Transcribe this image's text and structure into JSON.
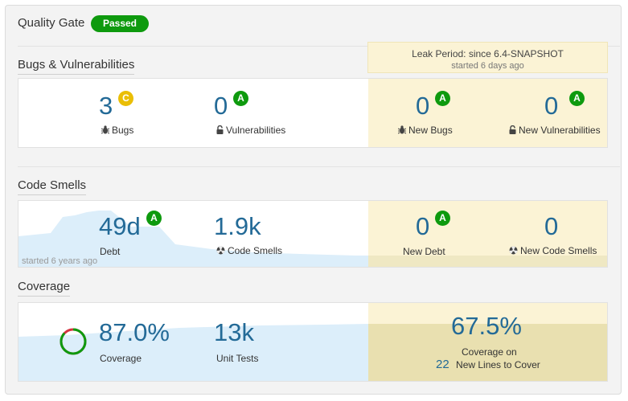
{
  "quality_gate": {
    "label": "Quality Gate",
    "status": "Passed",
    "status_color": "#0e9a0e"
  },
  "leak_period": {
    "title": "Leak Period: since 6.4-SNAPSHOT",
    "started": "started 6 days ago"
  },
  "bugs_section": {
    "title": "Bugs & Vulnerabilities",
    "bugs": {
      "value": "3",
      "rating": "C",
      "label": "Bugs",
      "icon": "bug-icon"
    },
    "vulnerabilities": {
      "value": "0",
      "rating": "A",
      "label": "Vulnerabilities",
      "icon": "lock-icon"
    },
    "new_bugs": {
      "value": "0",
      "rating": "A",
      "label": "New Bugs",
      "icon": "bug-icon"
    },
    "new_vulnerabilities": {
      "value": "0",
      "rating": "A",
      "label": "New Vulnerabilities",
      "icon": "lock-icon"
    }
  },
  "smells_section": {
    "title": "Code Smells",
    "debt": {
      "value": "49d",
      "rating": "A",
      "label": "Debt"
    },
    "code_smells": {
      "value": "1.9k",
      "label": "Code Smells",
      "icon": "radiation-icon"
    },
    "new_debt": {
      "value": "0",
      "rating": "A",
      "label": "New Debt"
    },
    "new_code_smells": {
      "value": "0",
      "label": "New Code Smells",
      "icon": "radiation-icon"
    },
    "started": "started 6 years ago"
  },
  "coverage_section": {
    "title": "Coverage",
    "coverage": {
      "value": "87.0%",
      "label": "Coverage",
      "fraction": 0.87
    },
    "unit_tests": {
      "value": "13k",
      "label": "Unit Tests"
    },
    "new_coverage": {
      "value": "67.5%",
      "label": "Coverage on",
      "lines_value": "22",
      "lines_label": "New Lines to Cover"
    }
  },
  "colors": {
    "accent": "#236a97",
    "rating_a": "#0e9a0e",
    "rating_c": "#eabe06",
    "leak_bg": "#fbf3d5"
  }
}
